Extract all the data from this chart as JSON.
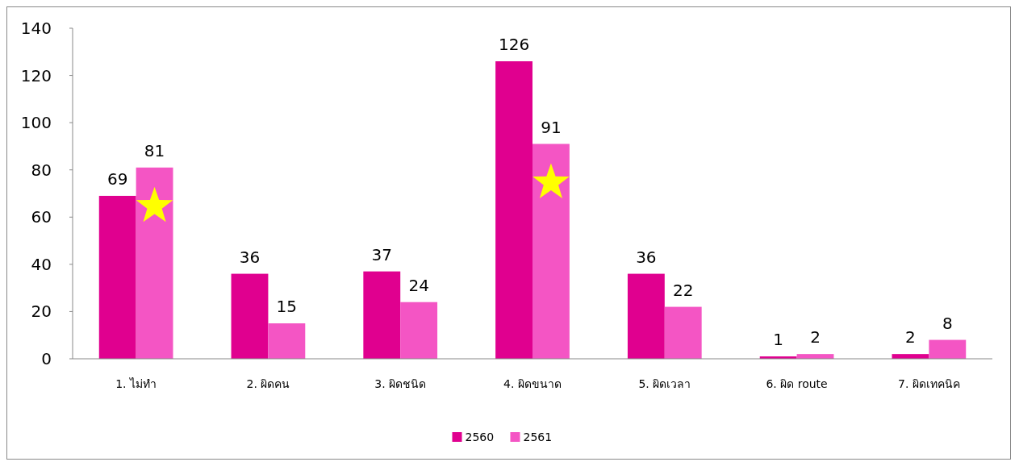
{
  "chart_data": {
    "type": "bar",
    "categories": [
      "1. ไม่ทำ",
      "2. ผิดคน",
      "3. ผิดชนิด",
      "4. ผิดขนาด",
      "5. ผิดเวลา",
      "6. ผิด route",
      "7. ผิดเทคนิค"
    ],
    "series": [
      {
        "name": "2560",
        "color": "#e0008f",
        "values": [
          69,
          36,
          37,
          126,
          36,
          1,
          2
        ]
      },
      {
        "name": "2561",
        "color": "#f455c4",
        "values": [
          81,
          15,
          24,
          91,
          22,
          2,
          8
        ]
      }
    ],
    "ylim": [
      0,
      140
    ],
    "yticks": [
      0,
      20,
      40,
      60,
      80,
      100,
      120,
      140
    ],
    "grid": false,
    "legend": "bottom",
    "data_labels": true
  }
}
